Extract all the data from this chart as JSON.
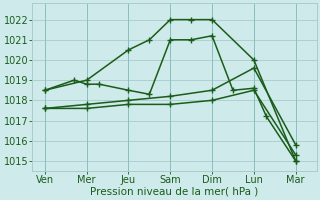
{
  "x_labels": [
    "Ven",
    "Mer",
    "Jeu",
    "Sam",
    "Dim",
    "Lun",
    "Mar"
  ],
  "x_positions": [
    0,
    1,
    2,
    3,
    4,
    5,
    6
  ],
  "lines": [
    {
      "label": "line1_top",
      "x": [
        0,
        1,
        2,
        2.5,
        3,
        3.5,
        4,
        5,
        6
      ],
      "y": [
        1018.5,
        1019.0,
        1020.5,
        1021.0,
        1022.0,
        1022.0,
        1022.0,
        1020.0,
        1015.0
      ]
    },
    {
      "label": "line2_mid",
      "x": [
        0,
        0.7,
        1,
        1.3,
        2,
        2.5,
        3,
        3.5,
        4,
        4.5,
        5,
        5.3,
        6
      ],
      "y": [
        1018.5,
        1019.0,
        1018.8,
        1018.8,
        1018.5,
        1018.3,
        1021.0,
        1021.0,
        1021.2,
        1018.5,
        1018.6,
        1017.2,
        1015.0
      ]
    },
    {
      "label": "line3_gradual",
      "x": [
        0,
        1,
        2,
        3,
        4,
        5,
        6
      ],
      "y": [
        1017.6,
        1017.8,
        1018.0,
        1018.2,
        1018.5,
        1019.6,
        1015.8
      ]
    },
    {
      "label": "line4_flat_down",
      "x": [
        0,
        1,
        2,
        3,
        4,
        5,
        6
      ],
      "y": [
        1017.6,
        1017.6,
        1017.8,
        1017.8,
        1018.0,
        1018.5,
        1015.3
      ]
    }
  ],
  "line_color": "#1a5c1a",
  "bg_color": "#ceeaea",
  "grid_color": "#a8cccc",
  "xlabel_text": "Pression niveau de la mer( hPa )",
  "ylim": [
    1014.5,
    1022.8
  ],
  "yticks": [
    1015,
    1016,
    1017,
    1018,
    1019,
    1020,
    1021,
    1022
  ],
  "marker": "+",
  "markersize": 4,
  "linewidth": 1.1,
  "tick_fontsize": 7,
  "xlabel_fontsize": 7.5
}
